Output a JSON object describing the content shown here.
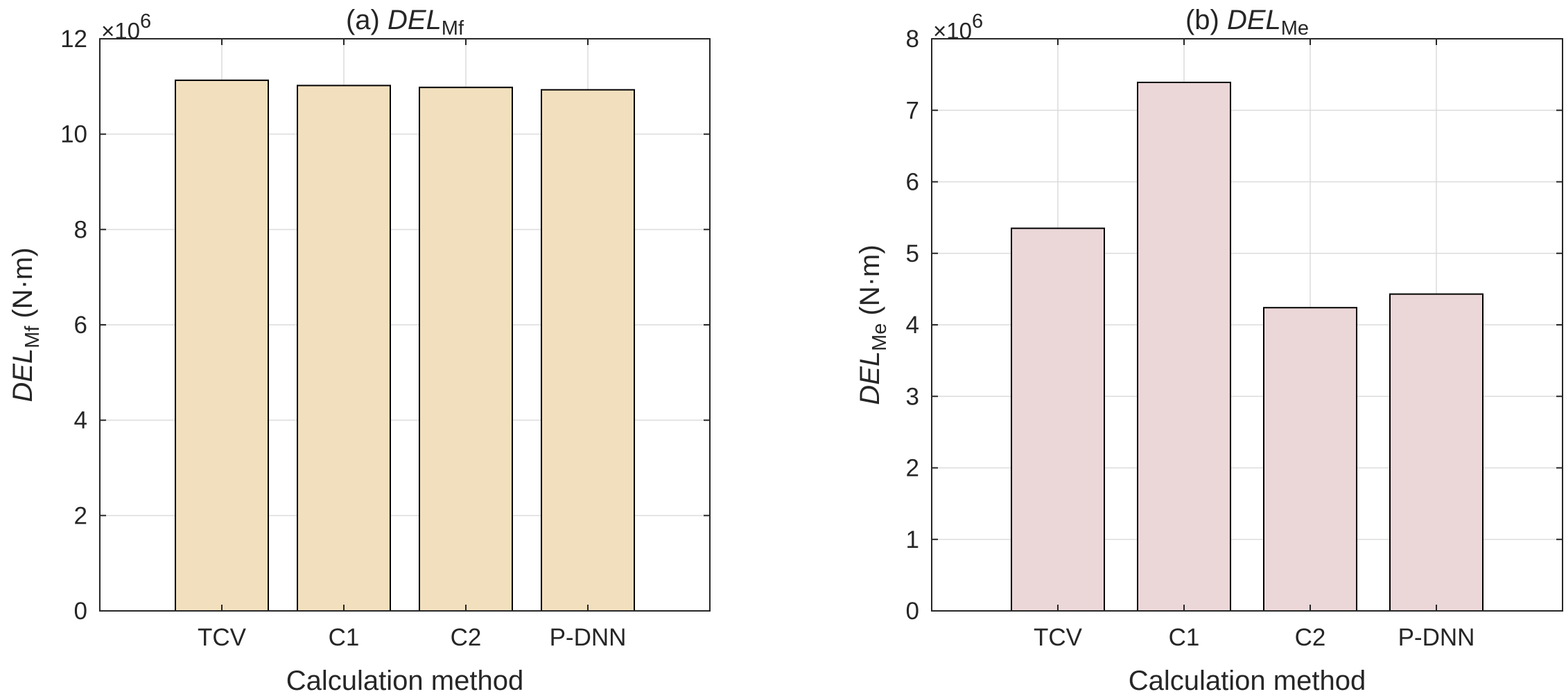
{
  "chart_data": [
    {
      "type": "bar",
      "title": {
        "prefix": "(a) ",
        "main": "DEL",
        "sub": "Mf"
      },
      "xlabel": "Calculation method",
      "ylabel": {
        "main": "DEL",
        "sub": "Mf",
        "unit": " (N·m)"
      },
      "exponent": {
        "base": "×10",
        "power": "6"
      },
      "categories": [
        "TCV",
        "C1",
        "C2",
        "P-DNN"
      ],
      "values": [
        11.13,
        11.02,
        10.98,
        10.93
      ],
      "ylim": [
        0,
        12
      ],
      "yticks": [
        "0",
        "2",
        "4",
        "6",
        "8",
        "10",
        "12"
      ],
      "grid": true,
      "bar_color": "#f2dfbd"
    },
    {
      "type": "bar",
      "title": {
        "prefix": "(b) ",
        "main": "DEL",
        "sub": "Me"
      },
      "xlabel": "Calculation method",
      "ylabel": {
        "main": "DEL",
        "sub": "Me",
        "unit": " (N·m)"
      },
      "exponent": {
        "base": "×10",
        "power": "6"
      },
      "categories": [
        "TCV",
        "C1",
        "C2",
        "P-DNN"
      ],
      "values": [
        5.35,
        7.39,
        4.24,
        4.43
      ],
      "ylim": [
        0,
        8
      ],
      "yticks": [
        "0",
        "1",
        "2",
        "3",
        "4",
        "5",
        "6",
        "7",
        "8"
      ],
      "grid": true,
      "bar_color": "#ebd6d8"
    }
  ]
}
